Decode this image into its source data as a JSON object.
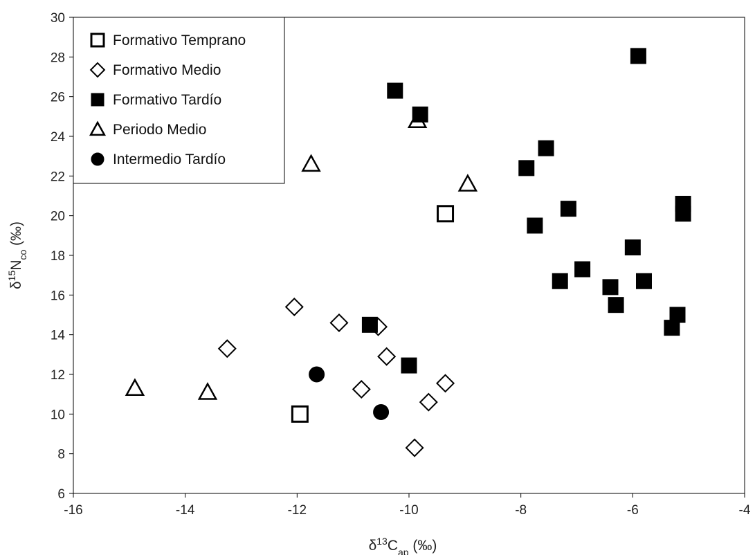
{
  "chart_data": {
    "type": "scatter",
    "xlabel": {
      "prefix": "δ",
      "sup": "13",
      "mid": "C",
      "sub": "ap",
      "suffix": " (‰)"
    },
    "ylabel": {
      "prefix": "δ",
      "sup": "15",
      "mid": "N",
      "sub": "co",
      "suffix": " (‰)"
    },
    "xlim": [
      -16,
      -4
    ],
    "ylim": [
      6,
      30
    ],
    "xticks": [
      -16,
      -14,
      -12,
      -10,
      -8,
      -6,
      -4
    ],
    "yticks": [
      6,
      8,
      10,
      12,
      14,
      16,
      18,
      20,
      22,
      24,
      26,
      28,
      30
    ],
    "grid": false,
    "legend_position": "top-left",
    "series": [
      {
        "name": "Formativo Temprano",
        "marker": "open-square",
        "points": [
          [
            -9.35,
            20.1
          ],
          [
            -11.95,
            10.0
          ]
        ]
      },
      {
        "name": "Formativo Medio",
        "marker": "open-diamond",
        "points": [
          [
            -13.25,
            13.3
          ],
          [
            -12.05,
            15.4
          ],
          [
            -11.25,
            14.6
          ],
          [
            -10.55,
            14.4
          ],
          [
            -10.4,
            12.9
          ],
          [
            -10.85,
            11.25
          ],
          [
            -9.65,
            10.6
          ],
          [
            -9.35,
            11.55
          ],
          [
            -9.9,
            8.3
          ]
        ]
      },
      {
        "name": "Formativo Tardío",
        "marker": "filled-square",
        "points": [
          [
            -10.25,
            26.3
          ],
          [
            -9.8,
            25.1
          ],
          [
            -7.55,
            23.4
          ],
          [
            -7.9,
            22.4
          ],
          [
            -7.15,
            20.35
          ],
          [
            -7.75,
            19.5
          ],
          [
            -5.9,
            28.05
          ],
          [
            -5.1,
            20.6
          ],
          [
            -5.1,
            20.1
          ],
          [
            -6.0,
            18.4
          ],
          [
            -6.9,
            17.3
          ],
          [
            -7.3,
            16.7
          ],
          [
            -6.4,
            16.4
          ],
          [
            -5.8,
            16.7
          ],
          [
            -6.3,
            15.5
          ],
          [
            -5.2,
            15.0
          ],
          [
            -5.3,
            14.35
          ],
          [
            -10.7,
            14.5
          ],
          [
            -10.0,
            12.45
          ]
        ]
      },
      {
        "name": "Periodo Medio",
        "marker": "open-triangle",
        "points": [
          [
            -9.85,
            24.8
          ],
          [
            -11.75,
            22.6
          ],
          [
            -8.95,
            21.6
          ],
          [
            -14.9,
            11.3
          ],
          [
            -13.6,
            11.1
          ]
        ]
      },
      {
        "name": "Intermedio Tardío",
        "marker": "filled-circle",
        "points": [
          [
            -11.65,
            12.0
          ],
          [
            -10.5,
            10.1
          ]
        ]
      }
    ]
  }
}
